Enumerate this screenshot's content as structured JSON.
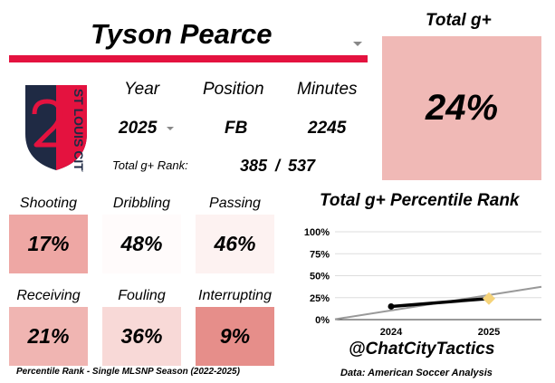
{
  "player": {
    "name": "Tyson Pearce"
  },
  "total": {
    "title": "Total g+",
    "value": "24%",
    "color": "#f0b9b6"
  },
  "club": {
    "logo_text": "ST LOUIS CITY",
    "logo_icon": "st-louis-city-crest-icon",
    "primary_color": "#e4123f",
    "secondary_color": "#1f2a44"
  },
  "info": {
    "year_label": "Year",
    "position_label": "Position",
    "minutes_label": "Minutes",
    "year_value": "2025",
    "position_value": "FB",
    "minutes_value": "2245",
    "rank_label": "Total g+ Rank:",
    "rank_value": "385 / 537"
  },
  "metrics": [
    {
      "label": "Shooting",
      "value": "17%",
      "color": "#eea7a4"
    },
    {
      "label": "Dribbling",
      "value": "48%",
      "color": "#fffbfb"
    },
    {
      "label": "Passing",
      "value": "46%",
      "color": "#fdf2f1"
    },
    {
      "label": "Receiving",
      "value": "21%",
      "color": "#f0b5b2"
    },
    {
      "label": "Fouling",
      "value": "36%",
      "color": "#f8d9d7"
    },
    {
      "label": "Interrupting",
      "value": "9%",
      "color": "#e68e8a"
    }
  ],
  "footnote": "Percentile Rank - Single MLSNP Season (2022-2025)",
  "chart_data": {
    "type": "line",
    "title": "Total g+ Percentile Rank",
    "categories": [
      "2024",
      "2025"
    ],
    "series": [
      {
        "values": [
          15,
          24
        ],
        "color": "#000000"
      }
    ],
    "trend": {
      "values": [
        10.5,
        28
      ],
      "color": "#999999"
    },
    "highlight_color": "#f5d37a",
    "yticks": [
      "0%",
      "25%",
      "50%",
      "75%",
      "100%"
    ],
    "ylim": [
      0,
      100
    ],
    "grid": true
  },
  "credits": {
    "handle": "@ChatCityTactics",
    "source": "Data: American Soccer Analysis"
  },
  "icons": {
    "name_dropdown": "chevron-down-icon",
    "year_dropdown": "chevron-down-icon"
  }
}
